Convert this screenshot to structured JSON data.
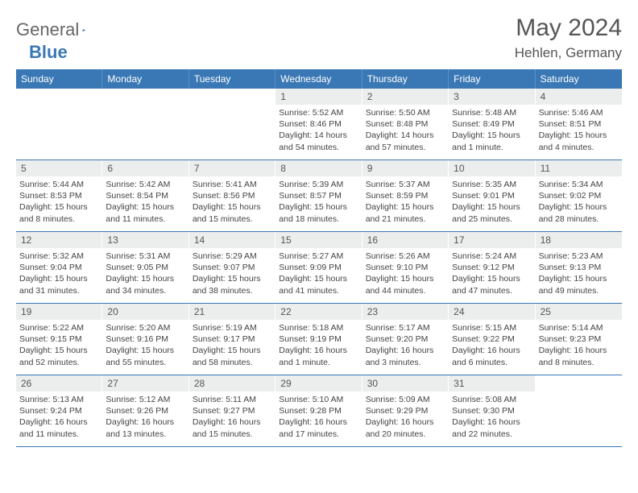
{
  "logo": {
    "text1": "General",
    "text2": "Blue"
  },
  "title": "May 2024",
  "location": "Hehlen, Germany",
  "colors": {
    "header_bg": "#3a78b5",
    "header_text": "#ffffff",
    "daynum_bg": "#eceded",
    "text": "#555555",
    "body_text": "#444444",
    "row_border": "#3a78b5",
    "page_bg": "#ffffff"
  },
  "day_names": [
    "Sunday",
    "Monday",
    "Tuesday",
    "Wednesday",
    "Thursday",
    "Friday",
    "Saturday"
  ],
  "weeks": [
    [
      null,
      null,
      null,
      {
        "n": "1",
        "sr": "5:52 AM",
        "ss": "8:46 PM",
        "dl": "14 hours and 54 minutes."
      },
      {
        "n": "2",
        "sr": "5:50 AM",
        "ss": "8:48 PM",
        "dl": "14 hours and 57 minutes."
      },
      {
        "n": "3",
        "sr": "5:48 AM",
        "ss": "8:49 PM",
        "dl": "15 hours and 1 minute."
      },
      {
        "n": "4",
        "sr": "5:46 AM",
        "ss": "8:51 PM",
        "dl": "15 hours and 4 minutes."
      }
    ],
    [
      {
        "n": "5",
        "sr": "5:44 AM",
        "ss": "8:53 PM",
        "dl": "15 hours and 8 minutes."
      },
      {
        "n": "6",
        "sr": "5:42 AM",
        "ss": "8:54 PM",
        "dl": "15 hours and 11 minutes."
      },
      {
        "n": "7",
        "sr": "5:41 AM",
        "ss": "8:56 PM",
        "dl": "15 hours and 15 minutes."
      },
      {
        "n": "8",
        "sr": "5:39 AM",
        "ss": "8:57 PM",
        "dl": "15 hours and 18 minutes."
      },
      {
        "n": "9",
        "sr": "5:37 AM",
        "ss": "8:59 PM",
        "dl": "15 hours and 21 minutes."
      },
      {
        "n": "10",
        "sr": "5:35 AM",
        "ss": "9:01 PM",
        "dl": "15 hours and 25 minutes."
      },
      {
        "n": "11",
        "sr": "5:34 AM",
        "ss": "9:02 PM",
        "dl": "15 hours and 28 minutes."
      }
    ],
    [
      {
        "n": "12",
        "sr": "5:32 AM",
        "ss": "9:04 PM",
        "dl": "15 hours and 31 minutes."
      },
      {
        "n": "13",
        "sr": "5:31 AM",
        "ss": "9:05 PM",
        "dl": "15 hours and 34 minutes."
      },
      {
        "n": "14",
        "sr": "5:29 AM",
        "ss": "9:07 PM",
        "dl": "15 hours and 38 minutes."
      },
      {
        "n": "15",
        "sr": "5:27 AM",
        "ss": "9:09 PM",
        "dl": "15 hours and 41 minutes."
      },
      {
        "n": "16",
        "sr": "5:26 AM",
        "ss": "9:10 PM",
        "dl": "15 hours and 44 minutes."
      },
      {
        "n": "17",
        "sr": "5:24 AM",
        "ss": "9:12 PM",
        "dl": "15 hours and 47 minutes."
      },
      {
        "n": "18",
        "sr": "5:23 AM",
        "ss": "9:13 PM",
        "dl": "15 hours and 49 minutes."
      }
    ],
    [
      {
        "n": "19",
        "sr": "5:22 AM",
        "ss": "9:15 PM",
        "dl": "15 hours and 52 minutes."
      },
      {
        "n": "20",
        "sr": "5:20 AM",
        "ss": "9:16 PM",
        "dl": "15 hours and 55 minutes."
      },
      {
        "n": "21",
        "sr": "5:19 AM",
        "ss": "9:17 PM",
        "dl": "15 hours and 58 minutes."
      },
      {
        "n": "22",
        "sr": "5:18 AM",
        "ss": "9:19 PM",
        "dl": "16 hours and 1 minute."
      },
      {
        "n": "23",
        "sr": "5:17 AM",
        "ss": "9:20 PM",
        "dl": "16 hours and 3 minutes."
      },
      {
        "n": "24",
        "sr": "5:15 AM",
        "ss": "9:22 PM",
        "dl": "16 hours and 6 minutes."
      },
      {
        "n": "25",
        "sr": "5:14 AM",
        "ss": "9:23 PM",
        "dl": "16 hours and 8 minutes."
      }
    ],
    [
      {
        "n": "26",
        "sr": "5:13 AM",
        "ss": "9:24 PM",
        "dl": "16 hours and 11 minutes."
      },
      {
        "n": "27",
        "sr": "5:12 AM",
        "ss": "9:26 PM",
        "dl": "16 hours and 13 minutes."
      },
      {
        "n": "28",
        "sr": "5:11 AM",
        "ss": "9:27 PM",
        "dl": "16 hours and 15 minutes."
      },
      {
        "n": "29",
        "sr": "5:10 AM",
        "ss": "9:28 PM",
        "dl": "16 hours and 17 minutes."
      },
      {
        "n": "30",
        "sr": "5:09 AM",
        "ss": "9:29 PM",
        "dl": "16 hours and 20 minutes."
      },
      {
        "n": "31",
        "sr": "5:08 AM",
        "ss": "9:30 PM",
        "dl": "16 hours and 22 minutes."
      },
      null
    ]
  ],
  "labels": {
    "sunrise": "Sunrise:",
    "sunset": "Sunset:",
    "daylight": "Daylight:"
  }
}
